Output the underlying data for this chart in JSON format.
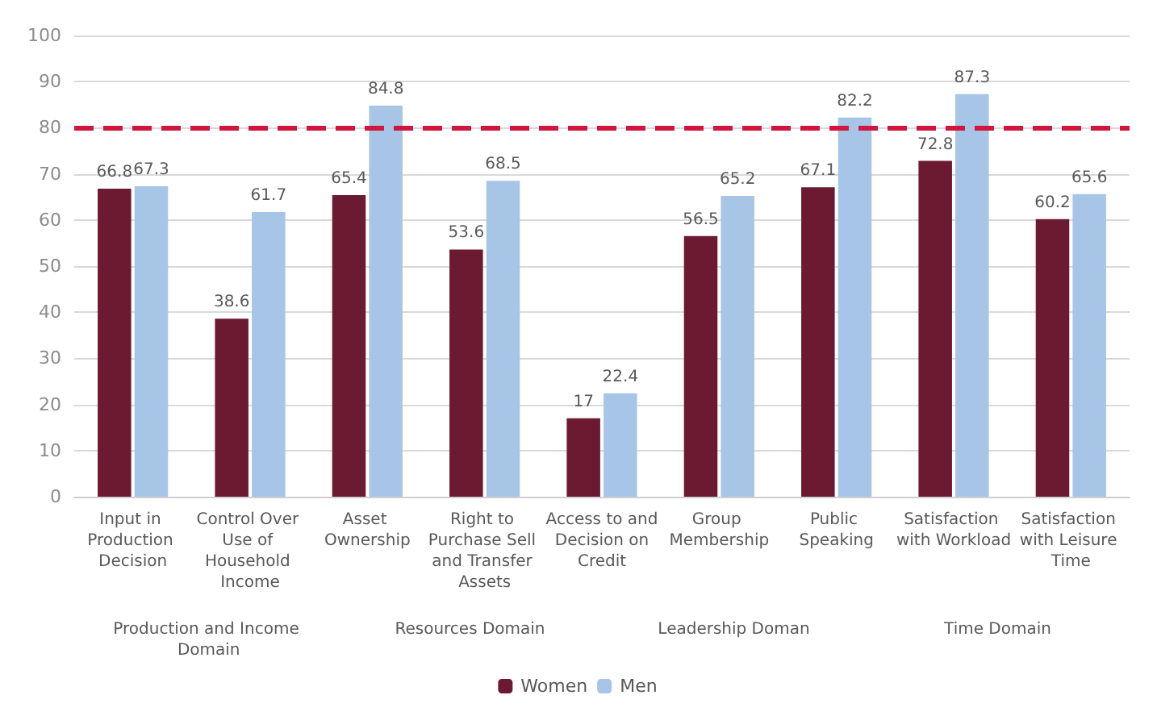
{
  "chart_data": {
    "type": "bar",
    "categories": [
      "Input in Production Decision",
      "Control Over Use of Household Income",
      "Asset Ownership",
      "Right to Purchase Sell and Transfer Assets",
      "Access to and Decision on Credit",
      "Group Membership",
      "Public Speaking",
      "Satisfaction with Workload",
      "Satisfaction with Leisure Time"
    ],
    "series": [
      {
        "name": "Women",
        "color": "#6b1a32",
        "values": [
          66.8,
          38.6,
          65.4,
          53.6,
          17,
          56.5,
          67.1,
          72.8,
          60.2
        ]
      },
      {
        "name": "Men",
        "color": "#a7c5e7",
        "values": [
          67.3,
          61.7,
          84.8,
          68.5,
          22.4,
          65.2,
          82.2,
          87.3,
          65.6
        ]
      }
    ],
    "ylim": [
      0,
      100
    ],
    "yticks": [
      0,
      10,
      20,
      30,
      40,
      50,
      60,
      70,
      80,
      90,
      100
    ],
    "grid": "y",
    "legend": "bottom",
    "data_labels": true,
    "ref_lines": [
      {
        "axis": "y",
        "value": 80,
        "color": "#d0163f",
        "line_style": "dashed"
      }
    ],
    "annotations": [
      "Production and Income Domain",
      "Resources Domain",
      "Leadership Doman",
      "Time Domain"
    ]
  }
}
